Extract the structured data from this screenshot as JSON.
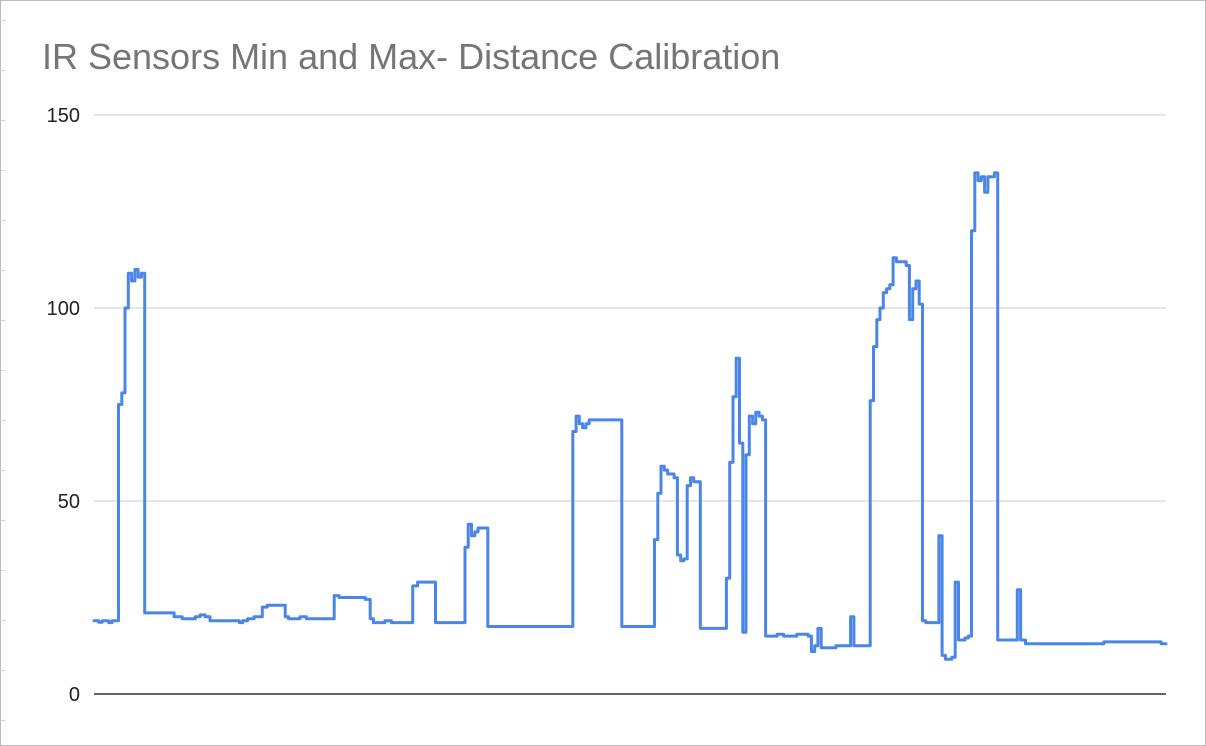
{
  "chart_data": {
    "type": "line",
    "title": "IR Sensors Min and Max- Distance Calibration",
    "xlabel": "",
    "ylabel": "",
    "ylim": [
      0,
      150
    ],
    "y_ticks": [
      0,
      50,
      100,
      150
    ],
    "grid": true,
    "legend": "none",
    "series": [
      {
        "color": "#4a86e8",
        "points": [
          [
            0,
            19
          ],
          [
            1,
            19
          ],
          [
            2,
            18.6
          ],
          [
            3,
            19
          ],
          [
            4,
            19
          ],
          [
            5,
            18.5
          ],
          [
            6,
            19
          ],
          [
            7,
            19
          ],
          [
            8,
            75
          ],
          [
            9,
            78
          ],
          [
            10,
            100
          ],
          [
            11,
            109
          ],
          [
            12,
            107
          ],
          [
            13,
            110
          ],
          [
            14,
            108
          ],
          [
            15,
            109
          ],
          [
            16,
            21
          ],
          [
            18,
            21
          ],
          [
            20,
            21
          ],
          [
            22,
            21
          ],
          [
            24,
            21
          ],
          [
            25,
            20
          ],
          [
            26,
            20
          ],
          [
            28,
            19.5
          ],
          [
            30,
            19.5
          ],
          [
            32,
            20
          ],
          [
            33,
            20.5
          ],
          [
            35,
            20
          ],
          [
            36,
            19
          ],
          [
            40,
            19
          ],
          [
            44,
            19
          ],
          [
            45,
            18.5
          ],
          [
            46,
            19
          ],
          [
            48,
            19.5
          ],
          [
            50,
            20
          ],
          [
            51,
            20
          ],
          [
            52,
            22.5
          ],
          [
            54,
            23
          ],
          [
            56,
            23
          ],
          [
            58,
            23
          ],
          [
            59,
            20
          ],
          [
            60,
            19.5
          ],
          [
            62,
            19.5
          ],
          [
            64,
            20
          ],
          [
            66,
            19.5
          ],
          [
            68,
            19.5
          ],
          [
            70,
            19.5
          ],
          [
            72,
            19.5
          ],
          [
            73,
            19.5
          ],
          [
            74,
            25.5
          ],
          [
            76,
            25
          ],
          [
            78,
            25
          ],
          [
            80,
            25
          ],
          [
            82,
            25
          ],
          [
            84,
            24.5
          ],
          [
            85,
            19.5
          ],
          [
            86,
            18.5
          ],
          [
            88,
            18.5
          ],
          [
            90,
            19
          ],
          [
            92,
            18.5
          ],
          [
            94,
            18.5
          ],
          [
            96,
            18.5
          ],
          [
            97,
            18.5
          ],
          [
            98,
            28
          ],
          [
            100,
            29
          ],
          [
            102,
            29
          ],
          [
            104,
            29
          ],
          [
            105,
            18.5
          ],
          [
            106,
            18.5
          ],
          [
            108,
            18.5
          ],
          [
            110,
            18.5
          ],
          [
            112,
            18.5
          ],
          [
            113,
            18.5
          ],
          [
            114,
            38
          ],
          [
            115,
            44
          ],
          [
            116,
            41
          ],
          [
            117,
            42
          ],
          [
            118,
            43
          ],
          [
            119,
            43
          ],
          [
            120,
            43
          ],
          [
            121,
            17.5
          ],
          [
            124,
            17.5
          ],
          [
            128,
            17.5
          ],
          [
            132,
            17.5
          ],
          [
            136,
            17.5
          ],
          [
            140,
            17.5
          ],
          [
            144,
            17.5
          ],
          [
            146,
            17.5
          ],
          [
            147,
            68
          ],
          [
            148,
            72
          ],
          [
            149,
            70
          ],
          [
            150,
            69
          ],
          [
            151,
            70
          ],
          [
            152,
            71
          ],
          [
            154,
            71
          ],
          [
            156,
            71
          ],
          [
            158,
            71
          ],
          [
            160,
            71
          ],
          [
            161,
            71
          ],
          [
            162,
            17.5
          ],
          [
            164,
            17.5
          ],
          [
            166,
            17.5
          ],
          [
            168,
            17.5
          ],
          [
            171,
            17.5
          ],
          [
            172,
            40
          ],
          [
            173,
            52
          ],
          [
            174,
            59
          ],
          [
            175,
            58
          ],
          [
            176,
            57
          ],
          [
            177,
            57
          ],
          [
            178,
            56
          ],
          [
            179,
            36
          ],
          [
            180,
            34.5
          ],
          [
            181,
            35
          ],
          [
            182,
            54
          ],
          [
            183,
            56
          ],
          [
            184,
            55
          ],
          [
            185,
            55
          ],
          [
            186,
            17
          ],
          [
            188,
            17
          ],
          [
            190,
            17
          ],
          [
            192,
            17
          ],
          [
            193,
            17
          ],
          [
            194,
            30
          ],
          [
            195,
            60
          ],
          [
            196,
            77
          ],
          [
            197,
            87
          ],
          [
            198,
            65
          ],
          [
            199,
            16
          ],
          [
            200,
            62
          ],
          [
            201,
            72
          ],
          [
            202,
            70
          ],
          [
            203,
            73
          ],
          [
            204,
            72
          ],
          [
            205,
            71
          ],
          [
            206,
            15
          ],
          [
            208,
            15
          ],
          [
            210,
            15.5
          ],
          [
            212,
            15
          ],
          [
            214,
            15
          ],
          [
            216,
            15.5
          ],
          [
            218,
            15.5
          ],
          [
            219,
            15
          ],
          [
            220,
            11
          ],
          [
            221,
            12.5
          ],
          [
            222,
            17
          ],
          [
            223,
            12
          ],
          [
            224,
            12
          ],
          [
            226,
            12
          ],
          [
            228,
            12.5
          ],
          [
            230,
            12.5
          ],
          [
            231,
            12.5
          ],
          [
            232,
            20
          ],
          [
            233,
            12.5
          ],
          [
            234,
            12.5
          ],
          [
            236,
            12.5
          ],
          [
            237,
            12.5
          ],
          [
            238,
            76
          ],
          [
            239,
            90
          ],
          [
            240,
            97
          ],
          [
            241,
            100
          ],
          [
            242,
            104
          ],
          [
            243,
            105
          ],
          [
            244,
            106
          ],
          [
            245,
            113
          ],
          [
            246,
            112
          ],
          [
            247,
            112
          ],
          [
            248,
            112
          ],
          [
            249,
            111
          ],
          [
            250,
            97
          ],
          [
            251,
            105
          ],
          [
            252,
            107
          ],
          [
            253,
            101
          ],
          [
            254,
            19
          ],
          [
            255,
            18.5
          ],
          [
            256,
            18.5
          ],
          [
            257,
            18.5
          ],
          [
            258,
            18.5
          ],
          [
            259,
            41
          ],
          [
            260,
            10
          ],
          [
            261,
            9
          ],
          [
            262,
            9
          ],
          [
            263,
            9.5
          ],
          [
            264,
            29
          ],
          [
            265,
            14
          ],
          [
            266,
            14
          ],
          [
            267,
            14.5
          ],
          [
            268,
            15
          ],
          [
            269,
            120
          ],
          [
            270,
            135
          ],
          [
            271,
            133
          ],
          [
            272,
            134
          ],
          [
            273,
            130
          ],
          [
            274,
            134
          ],
          [
            275,
            134
          ],
          [
            276,
            135
          ],
          [
            277,
            14
          ],
          [
            278,
            14
          ],
          [
            280,
            14
          ],
          [
            282,
            14
          ],
          [
            283,
            27
          ],
          [
            284,
            14
          ],
          [
            286,
            13
          ],
          [
            290,
            13
          ],
          [
            295,
            13
          ],
          [
            300,
            13
          ],
          [
            305,
            13
          ],
          [
            308,
            13
          ],
          [
            310,
            13.5
          ],
          [
            315,
            13.5
          ],
          [
            320,
            13.5
          ],
          [
            325,
            13.5
          ],
          [
            328,
            13
          ]
        ]
      }
    ]
  }
}
